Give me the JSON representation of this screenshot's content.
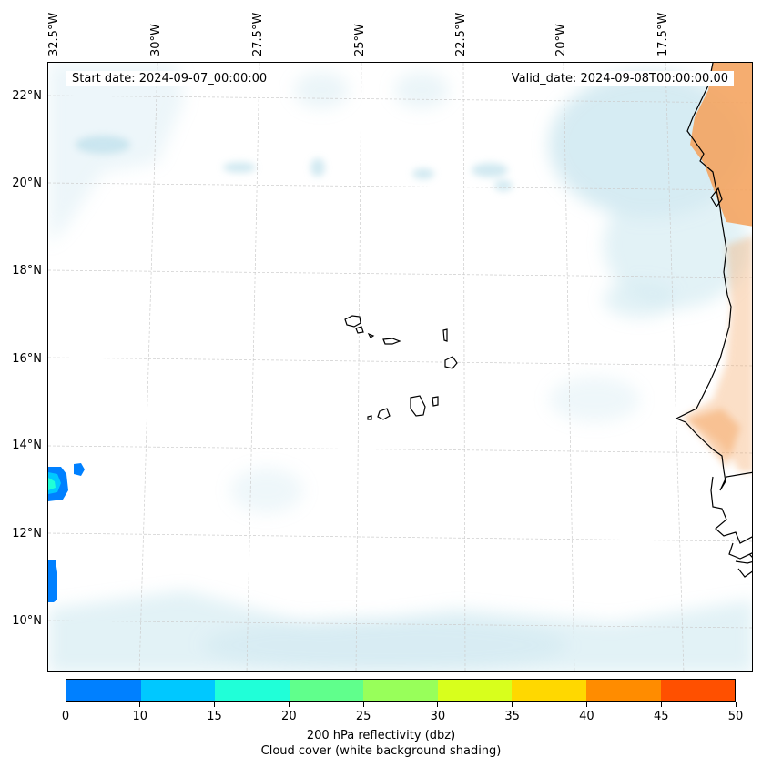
{
  "map": {
    "start_date": "Start date: 2024-09-07_00:00:00",
    "valid_date": "Valid_date: 2024-09-08T00:00:00.00",
    "longitude_labels": [
      "32.5°W",
      "30°W",
      "27.5°W",
      "25°W",
      "22.5°W",
      "20°W",
      "17.5°W"
    ],
    "latitude_labels": [
      "22°N",
      "20°N",
      "18°N",
      "16°N",
      "14°N",
      "12°N",
      "10°N"
    ],
    "colors": {
      "cloud": "#add8e6",
      "land_reflectivity_high": "#f4a460",
      "coastline": "#000000",
      "gridline": "#cccccc"
    }
  },
  "colorbar": {
    "ticks": [
      "0",
      "10",
      "15",
      "20",
      "25",
      "30",
      "35",
      "40",
      "45",
      "50"
    ],
    "colors": [
      "#0080ff",
      "#00c8ff",
      "#20ffd8",
      "#60ff8c",
      "#98ff5a",
      "#d8ff1c",
      "#ffd800",
      "#ff8c00",
      "#ff5000"
    ],
    "label_line1": "200 hPa reflectivity (dbz)",
    "label_line2": "Cloud cover (white background shading)"
  }
}
